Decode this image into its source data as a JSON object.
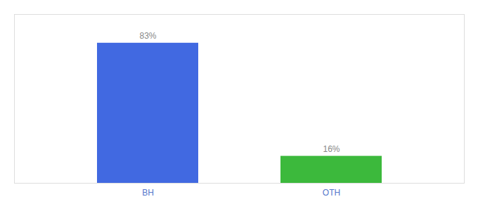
{
  "chart_data": {
    "type": "bar",
    "categories": [
      "BH",
      "OTH"
    ],
    "values": [
      83,
      16
    ],
    "value_labels": [
      "83%",
      "16%"
    ],
    "colors": [
      "#4169E1",
      "#3CB93C"
    ],
    "ylim": [
      0,
      100
    ],
    "data_labels": true,
    "tick_labels": "x",
    "grid": false
  }
}
